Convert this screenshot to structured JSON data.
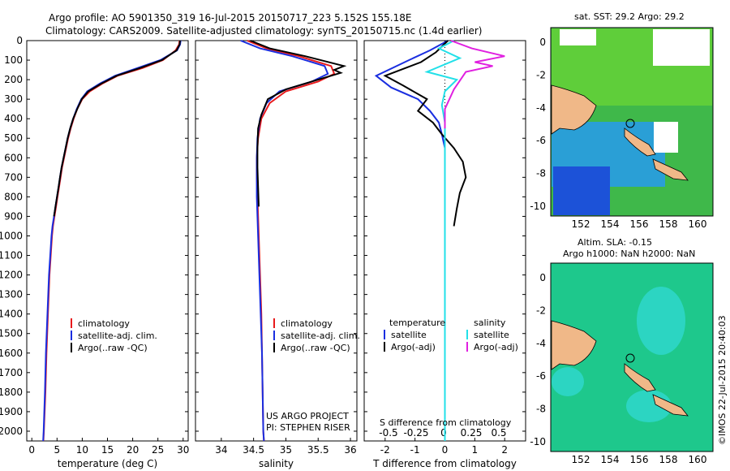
{
  "title": {
    "line1": "Argo profile: AO 5901350_319 16-Jul-2015 20150717_223 5.152S 155.18E",
    "line2": "Climatology: CARS2009. Satellite-adjusted climatology: synTS_20150715.nc (1.4d earlier)"
  },
  "depth_ticks": [
    "0",
    "100",
    "200",
    "300",
    "400",
    "500",
    "600",
    "700",
    "800",
    "900",
    "1000",
    "1100",
    "1200",
    "1300",
    "1400",
    "1500",
    "1600",
    "1700",
    "1800",
    "1900",
    "2000"
  ],
  "colors": {
    "climatology": "#e8191b",
    "satellite": "#1a2ee0",
    "argo": "#000000",
    "sal_satellite": "#22e0e8",
    "sal_argo": "#e020e0"
  },
  "legend_main": {
    "clim": "climatology",
    "sat": "satellite-adj. clim.",
    "argo": "Argo(..raw -QC)"
  },
  "legend_diff": {
    "temp_head": "temperature",
    "sal_head": "salinity",
    "sat": "satellite",
    "argo": "Argo(-adj)"
  },
  "project": {
    "line1": "US ARGO PROJECT",
    "line2": "PI: STEPHEN RISER"
  },
  "diff_top_label": "S difference from climatology",
  "credit": "©IMOS 22-Jul-2015 20:40:03",
  "map1_title": "sat. SST: 29.2 Argo: 29.2",
  "map2_title1": "Altim. SLA: -0.15",
  "map2_title2": "Argo h1000: NaN h2000: NaN",
  "map_lat_ticks": [
    "0",
    "-2",
    "-4",
    "-6",
    "-8",
    "-10"
  ],
  "map_lon_ticks": [
    "152",
    "154",
    "156",
    "158",
    "160"
  ],
  "chart_data": [
    {
      "type": "line",
      "xlabel": "temperature (deg C)",
      "xlim": [
        -1,
        31
      ],
      "ylim": [
        0,
        2050
      ],
      "xticks": [
        "0",
        "5",
        "10",
        "15",
        "20",
        "25",
        "30"
      ],
      "series": [
        {
          "name": "climatology",
          "x": [
            29.3,
            29.2,
            28.5,
            26,
            22,
            17,
            14,
            11.5,
            10,
            9,
            8.3,
            7.7,
            7.2,
            6.8,
            6.4,
            6,
            5.7,
            5.4,
            5.1,
            4.8,
            4.5,
            4.2,
            4,
            3.5,
            3.2,
            2.9,
            2.7,
            2.4,
            2.3
          ],
          "y": [
            0,
            20,
            50,
            100,
            140,
            180,
            220,
            260,
            300,
            350,
            400,
            450,
            500,
            550,
            600,
            650,
            700,
            750,
            800,
            850,
            900,
            950,
            1000,
            1200,
            1400,
            1600,
            1800,
            2000,
            2050
          ]
        },
        {
          "name": "satellite-adj. clim.",
          "x": [
            29.5,
            29.4,
            28.8,
            25.5,
            21,
            16.5,
            13.5,
            11,
            9.8,
            8.9,
            8.2,
            7.6,
            7.1,
            6.7,
            6.3,
            5.9,
            5.6,
            5.3,
            5,
            4.7,
            4.4,
            4.1,
            3.9,
            3.4,
            3.1,
            2.8,
            2.6,
            2.35,
            2.25
          ],
          "y": [
            0,
            20,
            50,
            100,
            140,
            180,
            220,
            260,
            300,
            350,
            400,
            450,
            500,
            550,
            600,
            650,
            700,
            750,
            800,
            850,
            900,
            950,
            1000,
            1200,
            1400,
            1600,
            1800,
            2000,
            2050
          ]
        },
        {
          "name": "Argo(..raw -QC)",
          "x": [
            29.4,
            29.3,
            28.7,
            25.8,
            21.5,
            16.8,
            13.8,
            11.2,
            9.9,
            9,
            8.2,
            7.6,
            7.1,
            6.7,
            6.3,
            5.9,
            5.6,
            5.3,
            5,
            4.7,
            4.4
          ],
          "y": [
            0,
            20,
            50,
            100,
            140,
            180,
            220,
            260,
            300,
            350,
            400,
            450,
            500,
            550,
            600,
            650,
            700,
            750,
            800,
            850,
            900
          ]
        }
      ]
    },
    {
      "type": "line",
      "xlabel": "salinity",
      "xlim": [
        33.6,
        36.1
      ],
      "ylim": [
        0,
        2050
      ],
      "xticks": [
        "34",
        "34.5",
        "35",
        "35.5",
        "36"
      ],
      "series": [
        {
          "name": "climatology",
          "x": [
            34.4,
            34.7,
            35.2,
            35.7,
            35.75,
            35.5,
            35.0,
            34.75,
            34.62,
            34.57,
            34.55,
            34.55,
            34.56,
            34.57,
            34.58,
            34.6,
            34.62,
            34.63,
            34.64,
            34.65,
            34.66
          ],
          "y": [
            0,
            40,
            80,
            130,
            170,
            210,
            260,
            320,
            400,
            500,
            600,
            700,
            800,
            900,
            1000,
            1200,
            1400,
            1600,
            1800,
            2000,
            2050
          ]
        },
        {
          "name": "satellite-adj. clim.",
          "x": [
            34.3,
            34.6,
            35.1,
            35.6,
            35.65,
            35.4,
            34.9,
            34.7,
            34.6,
            34.56,
            34.55,
            34.55,
            34.55,
            34.56,
            34.57,
            34.59,
            34.61,
            34.63,
            34.64,
            34.65,
            34.66
          ],
          "y": [
            0,
            40,
            80,
            130,
            170,
            210,
            260,
            320,
            400,
            500,
            600,
            700,
            800,
            900,
            1000,
            1200,
            1400,
            1600,
            1800,
            2000,
            2050
          ]
        },
        {
          "name": "Argo(..raw -QC)",
          "x": [
            34.45,
            34.75,
            35.3,
            35.9,
            35.75,
            35.85,
            35.5,
            35.0,
            34.72,
            34.62,
            34.57,
            34.56,
            34.56,
            34.57,
            34.58
          ],
          "y": [
            0,
            40,
            80,
            130,
            150,
            165,
            200,
            250,
            300,
            380,
            450,
            550,
            650,
            750,
            850
          ]
        }
      ]
    },
    {
      "type": "line",
      "xlabel": "T difference from climatology",
      "xlim": [
        -2.7,
        2.7
      ],
      "ylim": [
        0,
        2050
      ],
      "xticks": [
        "-2",
        "-1",
        "0",
        "1",
        "2"
      ],
      "top_xticks": [
        "-0.5",
        "-0.25",
        "0",
        "0.25",
        "0.5"
      ],
      "series": [
        {
          "name": "temperature satellite",
          "x": [
            0.1,
            -0.5,
            -1.2,
            -2.3,
            -1.8,
            -0.9,
            -0.5,
            -0.2,
            -0.1,
            0,
            0,
            0,
            0,
            0,
            0,
            0,
            0,
            0,
            0
          ],
          "y": [
            0,
            50,
            100,
            180,
            240,
            300,
            360,
            420,
            480,
            550,
            650,
            800,
            1000,
            1200,
            1400,
            1600,
            1800,
            2000,
            2050
          ]
        },
        {
          "name": "temperature Argo(-adj)",
          "x": [
            0.1,
            -0.3,
            -0.8,
            -2.0,
            -1.4,
            -0.6,
            -0.9,
            -0.4,
            -0.1,
            0.3,
            0.6,
            0.7,
            0.5,
            0.4,
            0.3
          ],
          "y": [
            0,
            60,
            110,
            180,
            230,
            300,
            360,
            420,
            480,
            550,
            620,
            700,
            780,
            860,
            950
          ]
        },
        {
          "name": "salinity satellite",
          "x": [
            0.3,
            -0.2,
            0.5,
            -0.6,
            0.4,
            0,
            -0.1,
            0,
            0,
            0,
            0,
            0,
            0,
            0,
            0,
            0,
            0,
            0
          ],
          "y": [
            0,
            40,
            90,
            160,
            200,
            260,
            330,
            420,
            500,
            600,
            800,
            1000,
            1200,
            1400,
            1600,
            1800,
            2000,
            2050
          ]
        },
        {
          "name": "salinity Argo(-adj)",
          "x": [
            0.2,
            0.9,
            2.0,
            1.0,
            1.6,
            0.7,
            0.3,
            0,
            0
          ],
          "y": [
            0,
            40,
            80,
            110,
            130,
            160,
            250,
            350,
            450
          ]
        }
      ]
    }
  ]
}
